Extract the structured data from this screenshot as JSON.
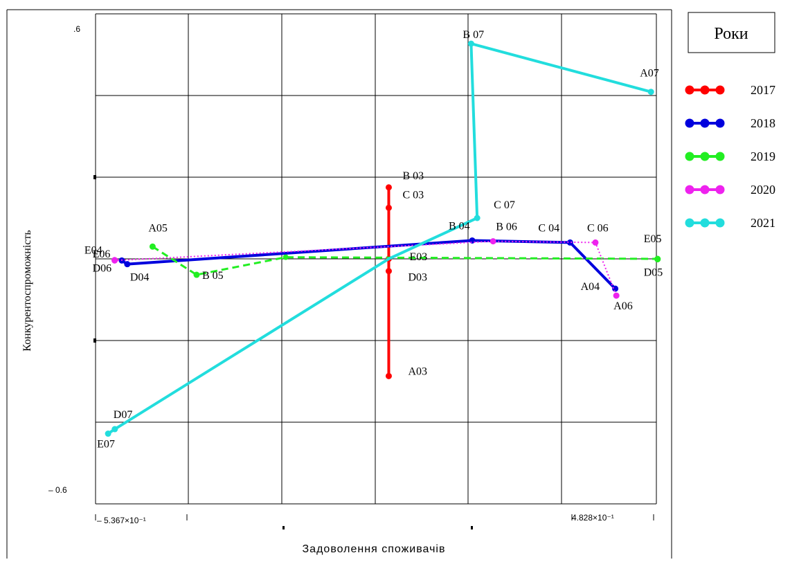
{
  "chart_data": {
    "type": "line",
    "title": "",
    "xlabel": "Задоволення споживачів",
    "ylabel": "Конкурентоспроможність",
    "xlim": [
      -0.5367,
      0.4828
    ],
    "ylim": [
      -0.6,
      0.6
    ],
    "grid": true,
    "x_tick_labels": [
      "– 5.367×10⁻¹",
      "4.828×10⁻¹"
    ],
    "y_tick_labels": [
      ".6",
      "– 0.6"
    ],
    "legend": {
      "title": "Роки",
      "placement": "right"
    },
    "series": [
      {
        "name": "2017",
        "color": "#ff0000",
        "style": "solid",
        "points": [
          {
            "x": -0.0037,
            "y": 0.175,
            "label": "B 03"
          },
          {
            "x": -0.0037,
            "y": 0.125,
            "label": "C 03"
          },
          {
            "x": -0.0037,
            "y": 0.0,
            "label": "E03"
          },
          {
            "x": -0.0037,
            "y": -0.03,
            "label": "D03"
          },
          {
            "x": -0.0037,
            "y": -0.287,
            "label": "A03"
          }
        ]
      },
      {
        "name": "2018",
        "color": "#0000dd",
        "style": "solid",
        "points": [
          {
            "x": -0.489,
            "y": -0.004,
            "label": "E04"
          },
          {
            "x": -0.479,
            "y": -0.013,
            "label": "D04"
          },
          {
            "x": 0.148,
            "y": 0.045,
            "label": "B 04"
          },
          {
            "x": 0.326,
            "y": 0.04,
            "label": "C 04"
          },
          {
            "x": 0.408,
            "y": -0.073,
            "label": "A04"
          }
        ]
      },
      {
        "name": "2019",
        "color": "#22ee22",
        "style": "dashed",
        "points": [
          {
            "x": -0.433,
            "y": 0.03,
            "label": "A05"
          },
          {
            "x": -0.353,
            "y": -0.039,
            "label": "B 05"
          },
          {
            "x": -0.191,
            "y": 0.004,
            "label": ""
          },
          {
            "x": 0.485,
            "y": 0.0,
            "label": "E05"
          },
          {
            "x": 0.485,
            "y": -0.001,
            "label": "D05"
          }
        ]
      },
      {
        "name": "2020",
        "color": "#ee22ee",
        "style": "dotted",
        "points": [
          {
            "x": -0.502,
            "y": -0.003,
            "label": "E06"
          },
          {
            "x": -0.502,
            "y": -0.004,
            "label": "D06"
          },
          {
            "x": 0.186,
            "y": 0.043,
            "label": "B 06"
          },
          {
            "x": 0.372,
            "y": 0.04,
            "label": "C 06"
          },
          {
            "x": 0.41,
            "y": -0.09,
            "label": "A06"
          }
        ]
      },
      {
        "name": "2021",
        "color": "#22dddd",
        "style": "solid",
        "points": [
          {
            "x": 0.473,
            "y": 0.409,
            "label": "A07"
          },
          {
            "x": 0.146,
            "y": 0.527,
            "label": "B 07"
          },
          {
            "x": 0.157,
            "y": 0.1,
            "label": "C 07"
          },
          {
            "x": -0.0037,
            "y": 0.0,
            "label": ""
          },
          {
            "x": -0.5017,
            "y": -0.417,
            "label": "D07"
          },
          {
            "x": -0.5139,
            "y": -0.428,
            "label": "E07"
          }
        ]
      }
    ]
  }
}
